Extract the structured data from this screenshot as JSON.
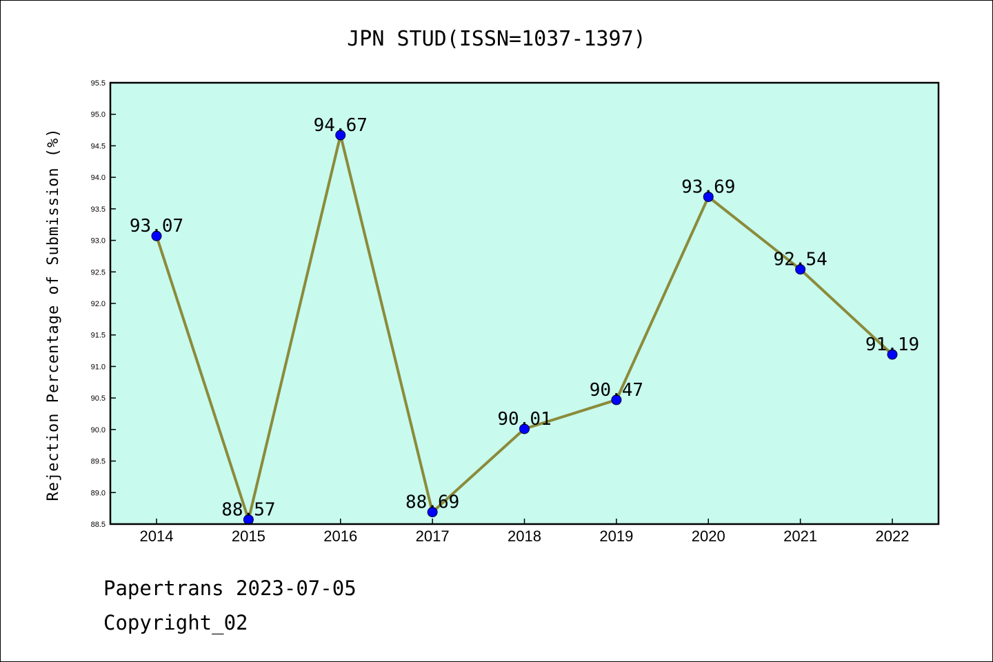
{
  "chart_data": {
    "type": "line",
    "title": "JPN STUD(ISSN=1037-1397)",
    "xlabel": "",
    "ylabel": "Rejection Percentage of Submission (%)",
    "categories": [
      "2014",
      "2015",
      "2016",
      "2017",
      "2018",
      "2019",
      "2020",
      "2021",
      "2022"
    ],
    "values": [
      93.07,
      88.57,
      94.67,
      88.69,
      90.01,
      90.47,
      93.69,
      92.54,
      91.19
    ],
    "data_labels": [
      "93.07",
      "88.57",
      "94.67",
      "88.69",
      "90.01",
      "90.47",
      "93.69",
      "92.54",
      "91.19"
    ],
    "ylim": [
      88.5,
      95.5
    ],
    "yticks": [
      "88.5",
      "89.0",
      "89.5",
      "90.0",
      "90.5",
      "91.0",
      "91.5",
      "92.0",
      "92.5",
      "93.0",
      "93.5",
      "94.0",
      "94.5",
      "95.0",
      "95.5"
    ],
    "grid": false,
    "colors": {
      "plot_background": "#c8faee",
      "line": "#8b8b3a",
      "marker": "#0000ff"
    }
  },
  "footer": {
    "line1": "Papertrans 2023-07-05",
    "line2": "Copyright_02"
  }
}
